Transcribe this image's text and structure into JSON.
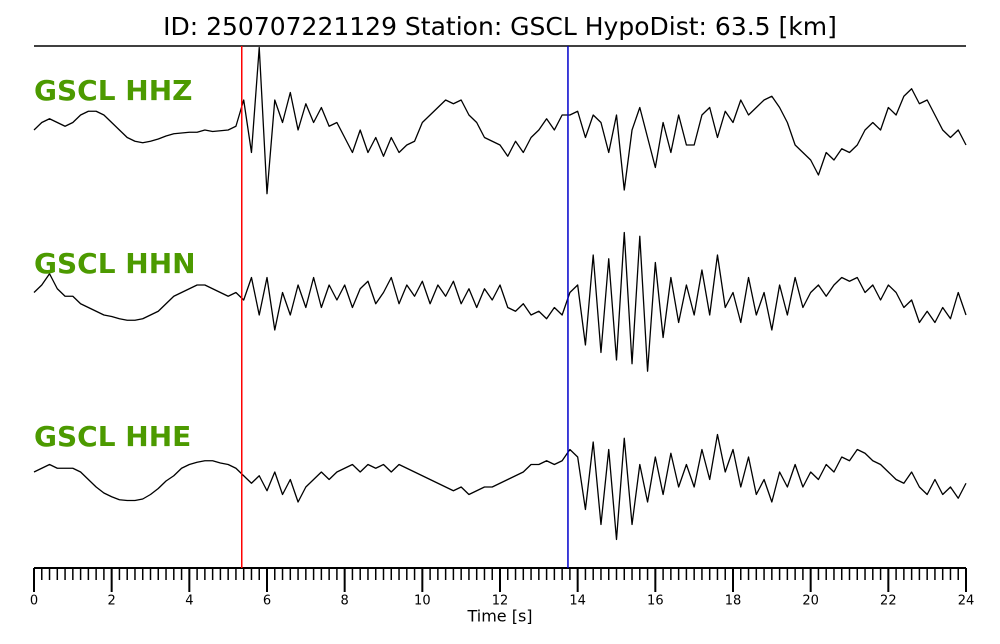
{
  "chart_data": {
    "type": "line",
    "title": "ID: 250707221129   Station: GSCL   HypoDist:    63.5 [km]",
    "xlabel": "Time [s]",
    "xlim": [
      0,
      24
    ],
    "xticks": [
      0,
      2,
      4,
      6,
      8,
      10,
      12,
      14,
      16,
      18,
      20,
      22,
      24
    ],
    "xminor": 0.2,
    "ylim": [
      -1,
      1
    ],
    "label_color": "#4c9a00",
    "vlines": [
      {
        "x": 5.35,
        "color": "#ff0000"
      },
      {
        "x": 13.75,
        "color": "#0000cc"
      }
    ],
    "x": [
      0,
      0.2,
      0.4,
      0.6,
      0.8,
      1,
      1.2,
      1.4,
      1.6,
      1.8,
      2,
      2.2,
      2.4,
      2.6,
      2.8,
      3,
      3.2,
      3.4,
      3.6,
      3.8,
      4,
      4.2,
      4.4,
      4.6,
      4.8,
      5,
      5.2,
      5.4,
      5.6,
      5.8,
      6,
      6.2,
      6.4,
      6.6,
      6.8,
      7,
      7.2,
      7.4,
      7.6,
      7.8,
      8,
      8.2,
      8.4,
      8.6,
      8.8,
      9,
      9.2,
      9.4,
      9.6,
      9.8,
      10,
      10.2,
      10.4,
      10.6,
      10.8,
      11,
      11.2,
      11.4,
      11.6,
      11.8,
      12,
      12.2,
      12.4,
      12.6,
      12.8,
      13,
      13.2,
      13.4,
      13.6,
      13.8,
      14,
      14.2,
      14.4,
      14.6,
      14.8,
      15,
      15.2,
      15.4,
      15.6,
      15.8,
      16,
      16.2,
      16.4,
      16.6,
      16.8,
      17,
      17.2,
      17.4,
      17.6,
      17.8,
      18,
      18.2,
      18.4,
      18.6,
      18.8,
      19,
      19.2,
      19.4,
      19.6,
      19.8,
      20,
      20.2,
      20.4,
      20.6,
      20.8,
      21,
      21.2,
      21.4,
      21.6,
      21.8,
      22,
      22.2,
      22.4,
      22.6,
      22.8,
      23,
      23.2,
      23.4,
      23.6,
      23.8,
      24
    ],
    "series": [
      {
        "name": "GSCL HHZ",
        "color": "#000000",
        "values": [
          0,
          0.1,
          0.15,
          0.1,
          0.05,
          0.1,
          0.2,
          0.25,
          0.25,
          0.2,
          0.1,
          0,
          -0.1,
          -0.15,
          -0.17,
          -0.15,
          -0.12,
          -0.08,
          -0.05,
          -0.04,
          -0.03,
          -0.03,
          0,
          -0.02,
          -0.01,
          0,
          0.05,
          0.4,
          -0.3,
          1.1,
          -0.85,
          0.4,
          0.1,
          0.5,
          0,
          0.35,
          0.1,
          0.3,
          0.05,
          0.1,
          -0.1,
          -0.3,
          0,
          -0.3,
          -0.1,
          -0.35,
          -0.1,
          -0.3,
          -0.2,
          -0.15,
          0.1,
          0.2,
          0.3,
          0.4,
          0.35,
          0.4,
          0.2,
          0.1,
          -0.1,
          -0.15,
          -0.2,
          -0.35,
          -0.15,
          -0.3,
          -0.1,
          0,
          0.15,
          0,
          0.2,
          0.2,
          0.25,
          -0.1,
          0.2,
          0.1,
          -0.3,
          0.2,
          -0.8,
          0,
          0.3,
          -0.1,
          -0.5,
          0.1,
          -0.3,
          0.2,
          -0.2,
          -0.2,
          0.2,
          0.3,
          -0.1,
          0.25,
          0.1,
          0.4,
          0.2,
          0.3,
          0.4,
          0.45,
          0.3,
          0.1,
          -0.2,
          -0.3,
          -0.4,
          -0.6,
          -0.3,
          -0.4,
          -0.25,
          -0.3,
          -0.2,
          0,
          0.1,
          0,
          0.3,
          0.2,
          0.45,
          0.55,
          0.35,
          0.4,
          0.2,
          0,
          -0.1,
          0,
          -0.2
        ]
      },
      {
        "name": "GSCL HHN",
        "color": "#000000",
        "values": [
          0.1,
          0.2,
          0.35,
          0.15,
          0.05,
          0.05,
          -0.05,
          -0.1,
          -0.15,
          -0.2,
          -0.22,
          -0.25,
          -0.27,
          -0.27,
          -0.25,
          -0.2,
          -0.15,
          -0.05,
          0.05,
          0.1,
          0.15,
          0.2,
          0.2,
          0.15,
          0.1,
          0.05,
          0.1,
          0,
          0.3,
          -0.2,
          0.3,
          -0.4,
          0.1,
          -0.2,
          0.2,
          -0.1,
          0.3,
          -0.1,
          0.2,
          0,
          0.2,
          -0.1,
          0.15,
          0.25,
          -0.05,
          0.1,
          0.3,
          -0.05,
          0.2,
          0.05,
          0.25,
          -0.05,
          0.2,
          0.05,
          0.25,
          -0.05,
          0.15,
          -0.1,
          0.15,
          0,
          0.2,
          -0.1,
          -0.15,
          -0.05,
          -0.2,
          -0.15,
          -0.25,
          -0.1,
          -0.2,
          0.1,
          0.2,
          -0.6,
          0.6,
          -0.7,
          0.55,
          -0.8,
          0.9,
          -0.85,
          0.85,
          -0.95,
          0.5,
          -0.5,
          0.3,
          -0.3,
          0.2,
          -0.2,
          0.4,
          -0.2,
          0.6,
          -0.1,
          0.1,
          -0.3,
          0.3,
          -0.2,
          0.1,
          -0.4,
          0.2,
          -0.2,
          0.3,
          -0.1,
          0.1,
          0.2,
          0.05,
          0.2,
          0.3,
          0.25,
          0.3,
          0.1,
          0.2,
          0,
          0.2,
          0.1,
          -0.1,
          0,
          -0.3,
          -0.15,
          -0.3,
          -0.1,
          -0.25,
          0.1,
          -0.2
        ]
      },
      {
        "name": "GSCL HHE",
        "color": "#000000",
        "values": [
          0,
          0.05,
          0.1,
          0.05,
          0.05,
          0.05,
          0,
          -0.1,
          -0.2,
          -0.28,
          -0.33,
          -0.37,
          -0.38,
          -0.38,
          -0.36,
          -0.3,
          -0.22,
          -0.12,
          -0.05,
          0.05,
          0.1,
          0.13,
          0.15,
          0.15,
          0.12,
          0.1,
          0.05,
          -0.05,
          -0.15,
          -0.05,
          -0.25,
          0,
          -0.3,
          -0.1,
          -0.4,
          -0.2,
          -0.1,
          0,
          -0.1,
          0,
          0.05,
          0.1,
          0,
          0.1,
          0.05,
          0.1,
          0,
          0.1,
          0.05,
          0,
          -0.05,
          -0.1,
          -0.15,
          -0.2,
          -0.25,
          -0.2,
          -0.3,
          -0.25,
          -0.2,
          -0.2,
          -0.15,
          -0.1,
          -0.05,
          0,
          0.1,
          0.1,
          0.15,
          0.1,
          0.15,
          0.3,
          0.2,
          -0.5,
          0.4,
          -0.7,
          0.3,
          -0.9,
          0.45,
          -0.7,
          0.1,
          -0.4,
          0.2,
          -0.3,
          0.25,
          -0.2,
          0.1,
          -0.2,
          0.3,
          -0.1,
          0.5,
          0,
          0.3,
          -0.2,
          0.2,
          -0.3,
          -0.1,
          -0.4,
          0,
          -0.2,
          0.1,
          -0.2,
          0,
          -0.1,
          0.1,
          0,
          0.2,
          0.15,
          0.3,
          0.25,
          0.15,
          0.1,
          0,
          -0.1,
          -0.15,
          0,
          -0.2,
          -0.3,
          -0.1,
          -0.3,
          -0.2,
          -0.35,
          -0.15
        ]
      }
    ]
  }
}
